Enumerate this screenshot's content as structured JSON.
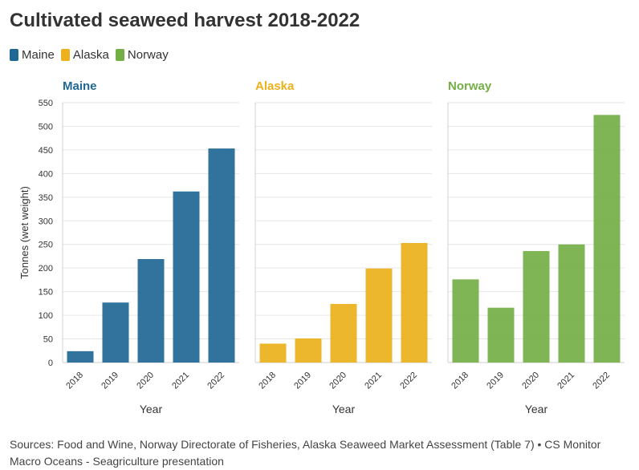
{
  "title": "Cultivated seaweed harvest 2018-2022",
  "legend": [
    {
      "label": "Maine",
      "color": "#1f6795"
    },
    {
      "label": "Alaska",
      "color": "#ecb11b"
    },
    {
      "label": "Norway",
      "color": "#74af45"
    }
  ],
  "source": "Sources: Food and Wine, Norway Directorate of Fisheries, Alaska Seaweed Market Assessment (Table 7) • CS Monitor Macro Oceans - Seagriculture presentation",
  "chart_data": {
    "type": "bar",
    "layout": "small-multiples",
    "title": "Cultivated seaweed harvest 2018-2022",
    "xlabel": "Year",
    "ylabel": "Tonnes (wet weight)",
    "ylim": [
      0,
      550
    ],
    "yticks": [
      0,
      50,
      100,
      150,
      200,
      250,
      300,
      350,
      400,
      450,
      500,
      550
    ],
    "categories": [
      "2018",
      "2019",
      "2020",
      "2021",
      "2022"
    ],
    "grid": true,
    "legend_position": "top-left",
    "series": [
      {
        "name": "Maine",
        "color": "#1f6795",
        "values": [
          24,
          127,
          219,
          362,
          453
        ]
      },
      {
        "name": "Alaska",
        "color": "#ecb11b",
        "values": [
          40,
          51,
          124,
          199,
          253
        ]
      },
      {
        "name": "Norway",
        "color": "#74af45",
        "values": [
          176,
          116,
          236,
          250,
          524
        ]
      }
    ]
  }
}
